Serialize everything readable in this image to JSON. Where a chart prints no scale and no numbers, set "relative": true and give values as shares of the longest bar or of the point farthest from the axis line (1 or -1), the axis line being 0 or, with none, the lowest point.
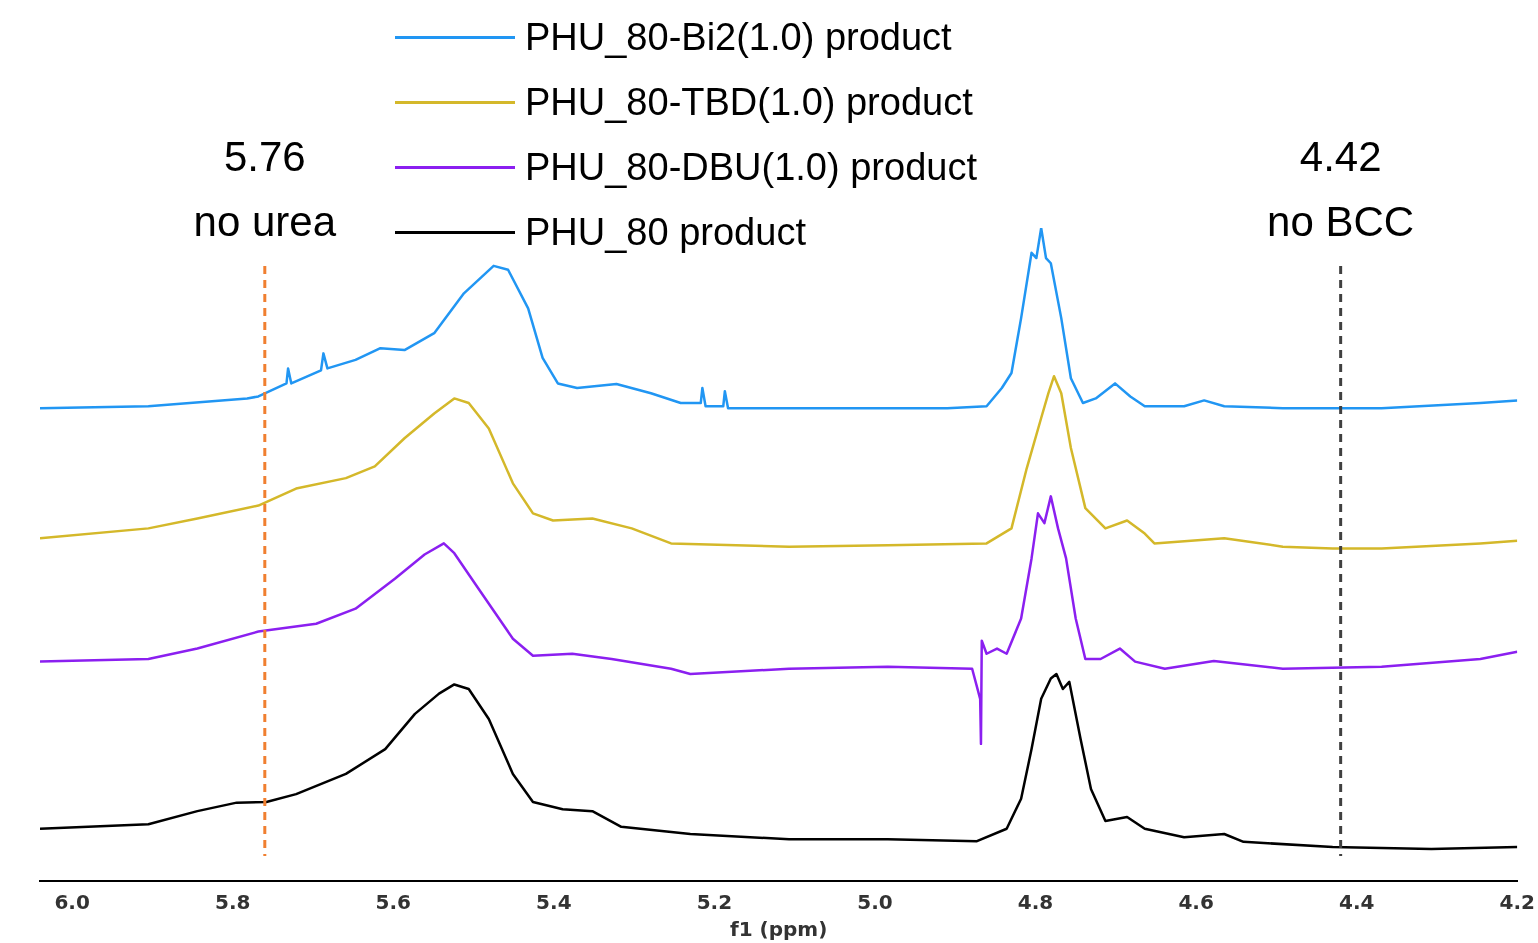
{
  "chart_data": {
    "type": "line",
    "relative": true,
    "xlabel": "f1 (ppm)",
    "xlim": [
      6.04,
      4.2
    ],
    "xticks": [
      {
        "value": 6,
        "label": "6.0"
      },
      5.8,
      5.6,
      5.4,
      5.2,
      {
        "value": 5,
        "label": "5.0"
      },
      4.8,
      4.6,
      4.4,
      4.2
    ],
    "legend": "top",
    "marker": "none",
    "line_style": "solid",
    "grid": false,
    "ref_lines": [
      {
        "axis": "x",
        "value": 5.76,
        "label": "5.76\nno urea",
        "color": "#f07f30",
        "line_style": "dashed"
      },
      {
        "axis": "x",
        "value": 4.42,
        "label": "4.42\nno BCC",
        "color": "#404040",
        "line_style": "dashed"
      }
    ],
    "series": [
      {
        "name": "PHU_80-Bi2(1.0) product",
        "color": "#2196f3",
        "x": [
          6.04,
          5.905,
          5.782,
          5.768,
          5.733,
          5.731,
          5.727,
          5.69,
          5.687,
          5.682,
          5.647,
          5.616,
          5.586,
          5.549,
          5.512,
          5.475,
          5.457,
          5.432,
          5.414,
          5.395,
          5.371,
          5.322,
          5.279,
          5.242,
          5.217,
          5.215,
          5.211,
          5.189,
          5.187,
          5.183,
          5.107,
          4.984,
          4.91,
          4.861,
          4.842,
          4.83,
          4.818,
          4.805,
          4.799,
          4.793,
          4.787,
          4.781,
          4.768,
          4.756,
          4.741,
          4.725,
          4.701,
          4.682,
          4.664,
          4.615,
          4.59,
          4.565,
          4.492,
          4.369,
          4.246,
          4.2
        ],
        "values": [
          0.724,
          0.727,
          0.739,
          0.742,
          0.762,
          0.785,
          0.762,
          0.782,
          0.808,
          0.785,
          0.798,
          0.816,
          0.813,
          0.839,
          0.9,
          0.942,
          0.936,
          0.877,
          0.801,
          0.762,
          0.755,
          0.761,
          0.747,
          0.732,
          0.732,
          0.755,
          0.727,
          0.727,
          0.75,
          0.724,
          0.724,
          0.724,
          0.724,
          0.727,
          0.755,
          0.778,
          0.862,
          0.962,
          0.954,
          1,
          0.954,
          0.946,
          0.862,
          0.77,
          0.732,
          0.739,
          0.762,
          0.742,
          0.727,
          0.727,
          0.736,
          0.727,
          0.724,
          0.724,
          0.732,
          0.736
        ]
      },
      {
        "name": "PHU_80-TBD(1.0) product",
        "color": "#d4b82a",
        "x": [
          6.04,
          5.905,
          5.844,
          5.768,
          5.721,
          5.659,
          5.623,
          5.586,
          5.549,
          5.524,
          5.506,
          5.481,
          5.451,
          5.426,
          5.401,
          5.352,
          5.303,
          5.254,
          5.107,
          4.984,
          4.861,
          4.83,
          4.811,
          4.793,
          4.784,
          4.777,
          4.768,
          4.756,
          4.738,
          4.713,
          4.686,
          4.664,
          4.652,
          4.565,
          4.492,
          4.43,
          4.369,
          4.246,
          4.2
        ],
        "values": [
          0.525,
          0.54,
          0.555,
          0.575,
          0.601,
          0.617,
          0.635,
          0.678,
          0.716,
          0.739,
          0.732,
          0.693,
          0.609,
          0.563,
          0.552,
          0.555,
          0.54,
          0.517,
          0.512,
          0.514,
          0.517,
          0.54,
          0.632,
          0.709,
          0.747,
          0.773,
          0.747,
          0.663,
          0.571,
          0.54,
          0.552,
          0.532,
          0.517,
          0.525,
          0.512,
          0.509,
          0.509,
          0.517,
          0.521
        ]
      },
      {
        "name": "PHU_80-DBU(1.0) product",
        "color": "#8b1ff0",
        "x": [
          6.04,
          5.905,
          5.844,
          5.768,
          5.696,
          5.647,
          5.598,
          5.561,
          5.537,
          5.524,
          5.494,
          5.451,
          5.426,
          5.377,
          5.328,
          5.254,
          5.23,
          5.107,
          4.984,
          4.879,
          4.869,
          4.868,
          4.867,
          4.861,
          4.848,
          4.836,
          4.818,
          4.805,
          4.797,
          4.789,
          4.781,
          4.772,
          4.762,
          4.75,
          4.738,
          4.719,
          4.695,
          4.676,
          4.639,
          4.578,
          4.492,
          4.369,
          4.246,
          4.2
        ],
        "values": [
          0.336,
          0.34,
          0.356,
          0.382,
          0.394,
          0.417,
          0.463,
          0.5,
          0.517,
          0.502,
          0.448,
          0.371,
          0.345,
          0.348,
          0.34,
          0.325,
          0.317,
          0.325,
          0.328,
          0.325,
          0.279,
          0.21,
          0.368,
          0.348,
          0.356,
          0.348,
          0.402,
          0.494,
          0.563,
          0.548,
          0.589,
          0.54,
          0.494,
          0.402,
          0.34,
          0.34,
          0.356,
          0.336,
          0.325,
          0.337,
          0.325,
          0.328,
          0.34,
          0.351
        ]
      },
      {
        "name": "PHU_80 product",
        "color": "#000000",
        "x": [
          6.04,
          5.905,
          5.844,
          5.795,
          5.758,
          5.721,
          5.659,
          5.61,
          5.573,
          5.543,
          5.524,
          5.506,
          5.481,
          5.451,
          5.426,
          5.389,
          5.352,
          5.316,
          5.23,
          5.107,
          4.984,
          4.873,
          4.836,
          4.818,
          4.805,
          4.793,
          4.781,
          4.774,
          4.766,
          4.758,
          4.744,
          4.731,
          4.713,
          4.686,
          4.664,
          4.615,
          4.565,
          4.541,
          4.43,
          4.307,
          4.2
        ],
        "values": [
          0.08,
          0.087,
          0.107,
          0.12,
          0.121,
          0.133,
          0.164,
          0.202,
          0.256,
          0.287,
          0.301,
          0.294,
          0.248,
          0.164,
          0.121,
          0.11,
          0.107,
          0.083,
          0.072,
          0.064,
          0.064,
          0.061,
          0.08,
          0.126,
          0.202,
          0.279,
          0.31,
          0.317,
          0.294,
          0.305,
          0.218,
          0.141,
          0.092,
          0.098,
          0.08,
          0.067,
          0.072,
          0.06,
          0.052,
          0.049,
          0.052
        ]
      }
    ]
  }
}
